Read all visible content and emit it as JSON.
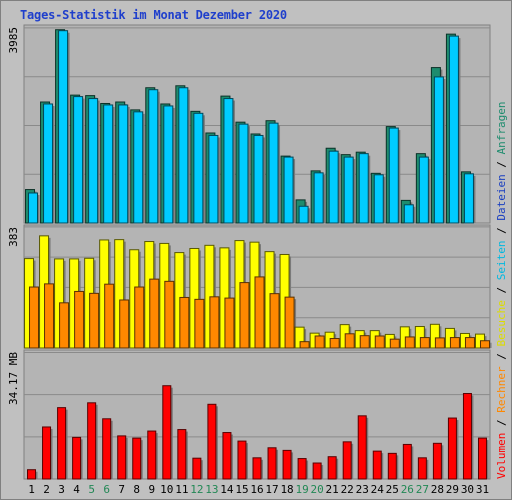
{
  "title": "Tages-Statistik im Monat Dezember 2020",
  "chart_data": [
    {
      "type": "bar",
      "panel": "top",
      "ymax_label": "3985",
      "ylim": [
        0,
        3985
      ],
      "categories": [
        "1",
        "2",
        "3",
        "4",
        "5",
        "6",
        "7",
        "8",
        "9",
        "10",
        "11",
        "12",
        "13",
        "14",
        "15",
        "16",
        "17",
        "18",
        "19",
        "20",
        "21",
        "22",
        "23",
        "24",
        "25",
        "26",
        "27",
        "28",
        "29",
        "30",
        "31"
      ],
      "series": [
        {
          "name": "Anfragen",
          "color": "#1e8c6e",
          "values": [
            680,
            2460,
            3930,
            2600,
            2590,
            2430,
            2460,
            2300,
            2750,
            2420,
            2790,
            2270,
            1830,
            2580,
            2050,
            1810,
            2080,
            1360,
            470,
            1060,
            1520,
            1390,
            1440,
            1010,
            1960,
            460,
            1410,
            3160,
            3840,
            1040,
            null
          ]
        },
        {
          "name": "Dateien",
          "color": "#1a3fc0",
          "values": [
            null,
            null,
            null,
            null,
            null,
            null,
            null,
            null,
            null,
            null,
            null,
            null,
            null,
            null,
            null,
            null,
            null,
            null,
            null,
            null,
            null,
            null,
            null,
            null,
            null,
            null,
            null,
            null,
            null,
            null,
            null
          ]
        },
        {
          "name": "Seiten",
          "color": "#00ccff",
          "values": [
            610,
            2420,
            3910,
            2570,
            2530,
            2400,
            2400,
            2260,
            2710,
            2380,
            2750,
            2230,
            1780,
            2530,
            2010,
            1780,
            2030,
            1340,
            340,
            1020,
            1460,
            1340,
            1410,
            980,
            1930,
            370,
            1340,
            2970,
            3800,
            1000,
            null
          ]
        }
      ]
    },
    {
      "type": "bar",
      "panel": "middle",
      "ymax_label": "383",
      "ylim": [
        0,
        383
      ],
      "series": [
        {
          "name": "Besuche",
          "color": "#ffff00",
          "values": [
            283,
            355,
            282,
            282,
            284,
            342,
            343,
            311,
            337,
            331,
            302,
            315,
            325,
            317,
            340,
            335,
            305,
            296,
            66,
            47,
            50,
            74,
            55,
            55,
            43,
            67,
            68,
            75,
            62,
            46,
            44
          ]
        },
        {
          "name": "Rechner",
          "color": "#ff8800",
          "values": [
            193,
            203,
            143,
            179,
            173,
            202,
            152,
            193,
            218,
            211,
            160,
            154,
            162,
            158,
            207,
            225,
            172,
            161,
            20,
            38,
            30,
            45,
            39,
            38,
            28,
            35,
            33,
            32,
            33,
            33,
            23
          ]
        }
      ]
    },
    {
      "type": "bar",
      "panel": "bottom",
      "ymax_label": "34.17 MB",
      "ylim": [
        0,
        34.17
      ],
      "series": [
        {
          "name": "Volumen",
          "color": "#ff0000",
          "values": [
            2.5,
            14.0,
            19.2,
            11.2,
            20.5,
            16.2,
            11.6,
            11.0,
            12.9,
            25.1,
            13.3,
            5.6,
            20.1,
            12.5,
            10.2,
            5.7,
            8.4,
            7.7,
            5.5,
            4.3,
            6.0,
            10.0,
            17.0,
            7.5,
            6.9,
            9.3,
            5.7,
            9.6,
            16.4,
            23.0,
            11.0
          ]
        }
      ]
    }
  ],
  "xaxis": {
    "labels": [
      "1",
      "2",
      "3",
      "4",
      "5",
      "6",
      "7",
      "8",
      "9",
      "10",
      "11",
      "12",
      "13",
      "14",
      "15",
      "16",
      "17",
      "18",
      "19",
      "20",
      "21",
      "22",
      "23",
      "24",
      "25",
      "26",
      "27",
      "28",
      "29",
      "30",
      "31"
    ],
    "weekend": [
      "5",
      "6",
      "12",
      "13",
      "19",
      "20",
      "26",
      "27"
    ],
    "weekday_color": "#000000",
    "weekend_color": "#228855"
  },
  "legend": [
    {
      "text": "Volumen",
      "color": "#ff0000"
    },
    {
      "text": " / ",
      "color": "#000000"
    },
    {
      "text": "Rechner",
      "color": "#ff8800"
    },
    {
      "text": " / ",
      "color": "#000000"
    },
    {
      "text": "Besuche",
      "color": "#dcdc00"
    },
    {
      "text": " / ",
      "color": "#000000"
    },
    {
      "text": "Seiten",
      "color": "#00b8e0"
    },
    {
      "text": " / ",
      "color": "#000000"
    },
    {
      "text": "Dateien",
      "color": "#1a3fc0"
    },
    {
      "text": " / ",
      "color": "#000000"
    },
    {
      "text": "Anfragen",
      "color": "#1e8c6e"
    }
  ]
}
